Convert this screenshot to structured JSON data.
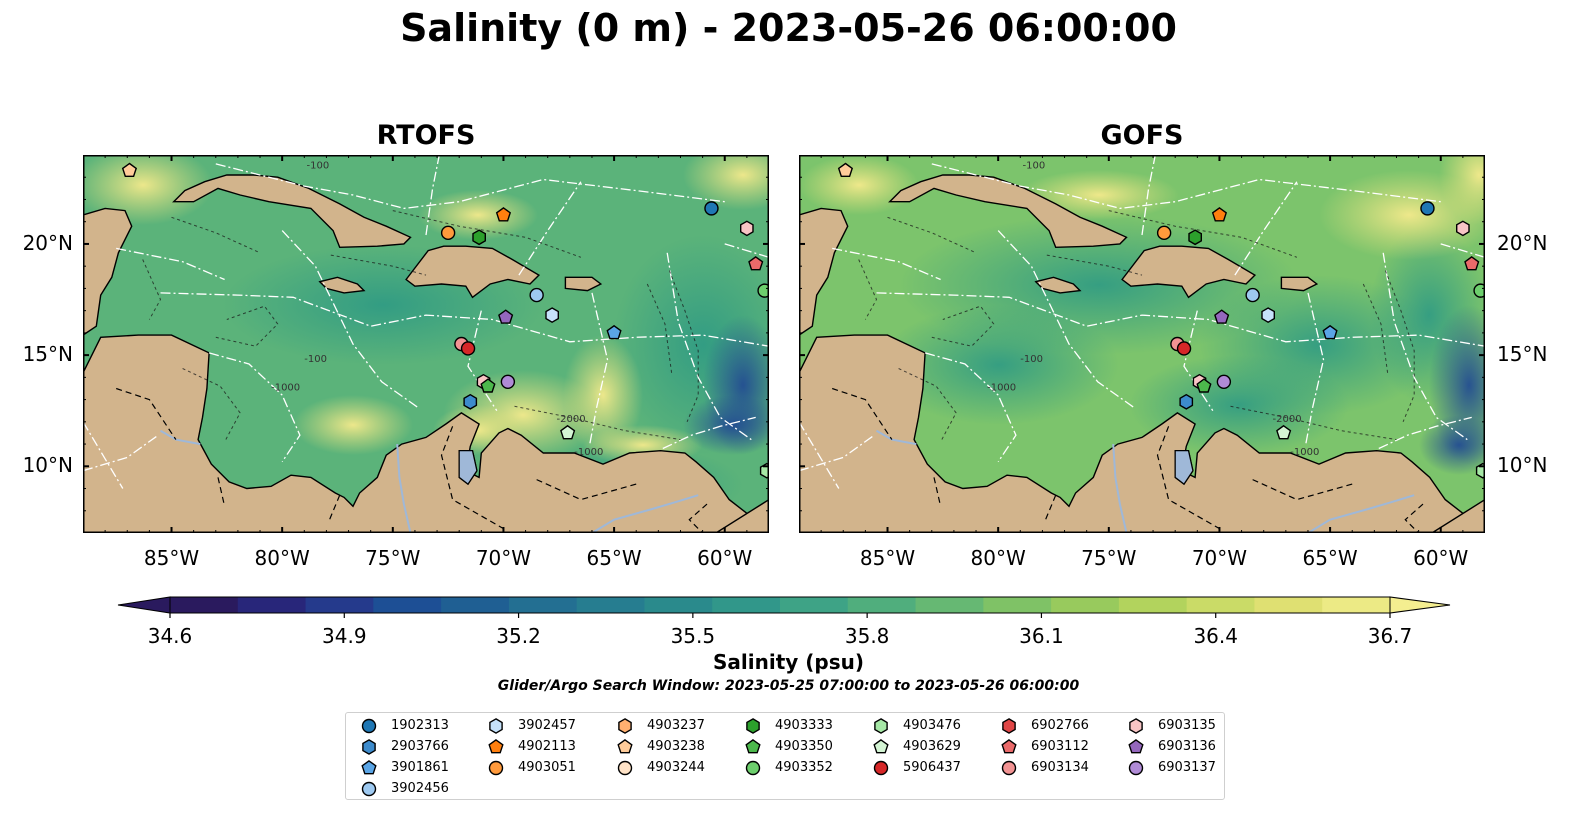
{
  "title": "Salinity (0 m) - 2023-05-26 06:00:00",
  "panels": [
    {
      "title": "RTOFS"
    },
    {
      "title": "GOFS"
    }
  ],
  "axes": {
    "lon_ticks": [
      "85°W",
      "80°W",
      "75°W",
      "70°W",
      "65°W",
      "60°W"
    ],
    "lat_ticks": [
      "20°N",
      "15°N",
      "10°N"
    ],
    "lon_range": [
      -89,
      -58
    ],
    "lat_range": [
      7,
      24
    ]
  },
  "contour_labels": [
    "-100",
    "-1000",
    "-2000"
  ],
  "colorbar": {
    "ticks": [
      "34.6",
      "34.9",
      "35.2",
      "35.5",
      "35.8",
      "36.1",
      "36.4",
      "36.7"
    ],
    "range": [
      34.6,
      36.7
    ],
    "label": "Salinity (psu)",
    "colormap": "haline",
    "extend": "both"
  },
  "search_window": "Glider/Argo Search Window: 2023-05-25 07:00:00 to 2023-05-26 06:00:00",
  "colors": {
    "land": "#d2b48c",
    "rivers": "#9fb8d8",
    "deep_ocean": "#2b1a66",
    "high_salinity": "#f0e688"
  },
  "legend": [
    {
      "id": "1902313",
      "marker": "circle",
      "color": "#1f77b4"
    },
    {
      "id": "2903766",
      "marker": "hexagon",
      "color": "#3d8bcc"
    },
    {
      "id": "3901861",
      "marker": "pentagon",
      "color": "#5aa5e6"
    },
    {
      "id": "3902456",
      "marker": "circle",
      "color": "#9ec9f0"
    },
    {
      "id": "3902457",
      "marker": "hexagon",
      "color": "#c6e2fb"
    },
    {
      "id": "4902113",
      "marker": "pentagon",
      "color": "#ff7f0e"
    },
    {
      "id": "4903051",
      "marker": "circle",
      "color": "#ff9a3c"
    },
    {
      "id": "4903237",
      "marker": "hexagon",
      "color": "#ffb070"
    },
    {
      "id": "4903238",
      "marker": "pentagon",
      "color": "#ffcc9a"
    },
    {
      "id": "4903244",
      "marker": "circle",
      "color": "#ffe3c7"
    },
    {
      "id": "4903333",
      "marker": "hexagon",
      "color": "#2ca02c"
    },
    {
      "id": "4903350",
      "marker": "pentagon",
      "color": "#4cb84c"
    },
    {
      "id": "4903352",
      "marker": "circle",
      "color": "#6dcf6d"
    },
    {
      "id": "4903476",
      "marker": "hexagon",
      "color": "#a6e8a6"
    },
    {
      "id": "4903629",
      "marker": "pentagon",
      "color": "#d4f5d4"
    },
    {
      "id": "5906437",
      "marker": "circle",
      "color": "#d62728"
    },
    {
      "id": "6902766",
      "marker": "hexagon",
      "color": "#e04646"
    },
    {
      "id": "6903112",
      "marker": "pentagon",
      "color": "#ea6a6a"
    },
    {
      "id": "6903134",
      "marker": "circle",
      "color": "#f29393"
    },
    {
      "id": "6903135",
      "marker": "hexagon",
      "color": "#f8c5c5"
    },
    {
      "id": "6903136",
      "marker": "pentagon",
      "color": "#9467bd"
    },
    {
      "id": "6903137",
      "marker": "circle",
      "color": "#b08bd6"
    }
  ],
  "floats": [
    {
      "id": "4903238",
      "lon": -86.9,
      "lat": 23.3
    },
    {
      "id": "1902313",
      "lon": -60.6,
      "lat": 21.6
    },
    {
      "id": "6903135",
      "lon": -59.0,
      "lat": 20.7
    },
    {
      "id": "6903112",
      "lon": -58.6,
      "lat": 19.1
    },
    {
      "id": "4903352",
      "lon": -58.2,
      "lat": 17.9
    },
    {
      "id": "4903051",
      "lon": -72.5,
      "lat": 20.5
    },
    {
      "id": "4903333",
      "lon": -71.1,
      "lat": 20.3
    },
    {
      "id": "4902113",
      "lon": -70.0,
      "lat": 21.3
    },
    {
      "id": "3902456",
      "lon": -68.5,
      "lat": 17.7
    },
    {
      "id": "3902457",
      "lon": -67.8,
      "lat": 16.8
    },
    {
      "id": "6903136",
      "lon": -69.9,
      "lat": 16.7
    },
    {
      "id": "3901861",
      "lon": -65.0,
      "lat": 16.0
    },
    {
      "id": "6903134",
      "lon": -71.9,
      "lat": 15.5
    },
    {
      "id": "5906437",
      "lon": -71.6,
      "lat": 15.3
    },
    {
      "id": "6903135",
      "lon": -70.9,
      "lat": 13.8
    },
    {
      "id": "4903350",
      "lon": -70.7,
      "lat": 13.6
    },
    {
      "id": "6903137",
      "lon": -69.8,
      "lat": 13.8
    },
    {
      "id": "2903766",
      "lon": -71.5,
      "lat": 12.9
    },
    {
      "id": "4903629",
      "lon": -67.1,
      "lat": 11.5
    },
    {
      "id": "4903476",
      "lon": -58.1,
      "lat": 9.8
    }
  ]
}
